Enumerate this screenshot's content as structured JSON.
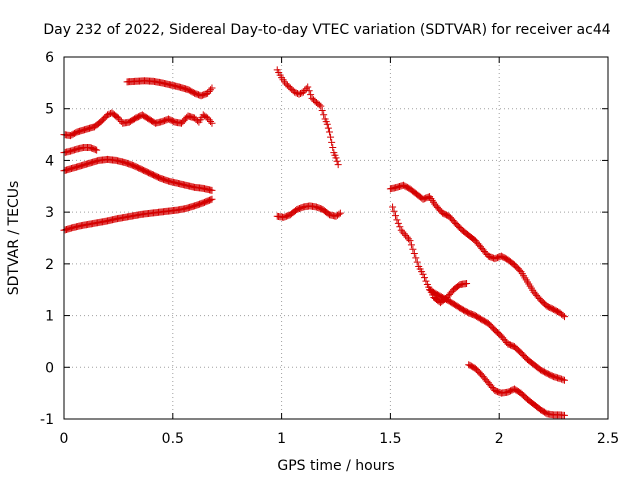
{
  "chart_data": {
    "type": "scatter",
    "title": "Day 232 of 2022, Sidereal Day-to-day VTEC variation (SDTVAR) for receiver ac44",
    "xlabel": "GPS time / hours",
    "ylabel": "SDTVAR / TECUs",
    "xlim": [
      0,
      2.5
    ],
    "ylim": [
      -1,
      6
    ],
    "xticks": [
      0,
      0.5,
      1,
      1.5,
      2,
      2.5
    ],
    "xtick_labels": [
      "0",
      "0.5",
      "1",
      "1.5",
      "2",
      "2.5"
    ],
    "yticks": [
      -1,
      0,
      1,
      2,
      3,
      4,
      5,
      6
    ],
    "ytick_labels": [
      "-1",
      "0",
      "1",
      "2",
      "3",
      "4",
      "5",
      "6"
    ],
    "grid": true,
    "marker": "+",
    "marker_color": "#d40000",
    "series": [
      {
        "name": "s1",
        "x": [
          0.29,
          0.33,
          0.37,
          0.41,
          0.45,
          0.49,
          0.53,
          0.57,
          0.6,
          0.63,
          0.66,
          0.68
        ],
        "y": [
          5.52,
          5.53,
          5.54,
          5.53,
          5.5,
          5.46,
          5.42,
          5.37,
          5.3,
          5.25,
          5.3,
          5.4
        ]
      },
      {
        "name": "s2",
        "x": [
          0.0,
          0.03,
          0.06,
          0.1,
          0.14,
          0.17,
          0.2,
          0.22,
          0.25,
          0.27,
          0.3,
          0.33,
          0.36,
          0.39,
          0.42,
          0.45,
          0.48,
          0.51,
          0.54,
          0.57,
          0.6,
          0.62,
          0.64,
          0.66,
          0.68
        ],
        "y": [
          4.5,
          4.48,
          4.55,
          4.6,
          4.65,
          4.75,
          4.88,
          4.92,
          4.82,
          4.72,
          4.74,
          4.82,
          4.88,
          4.8,
          4.72,
          4.75,
          4.8,
          4.74,
          4.72,
          4.86,
          4.82,
          4.74,
          4.88,
          4.82,
          4.72
        ]
      },
      {
        "name": "s3",
        "x": [
          0.0,
          0.03,
          0.06,
          0.09,
          0.12,
          0.15
        ],
        "y": [
          4.15,
          4.18,
          4.22,
          4.25,
          4.25,
          4.2
        ]
      },
      {
        "name": "s4",
        "x": [
          0.0,
          0.04,
          0.08,
          0.12,
          0.16,
          0.2,
          0.24,
          0.28,
          0.32,
          0.36,
          0.4,
          0.44,
          0.48,
          0.52,
          0.56,
          0.6,
          0.64,
          0.68
        ],
        "y": [
          3.8,
          3.85,
          3.9,
          3.95,
          4.0,
          4.02,
          4.0,
          3.96,
          3.9,
          3.82,
          3.74,
          3.66,
          3.6,
          3.56,
          3.52,
          3.48,
          3.46,
          3.42
        ]
      },
      {
        "name": "s5",
        "x": [
          0.0,
          0.04,
          0.08,
          0.12,
          0.16,
          0.2,
          0.24,
          0.28,
          0.32,
          0.36,
          0.4,
          0.44,
          0.48,
          0.52,
          0.56,
          0.6,
          0.64,
          0.68
        ],
        "y": [
          2.65,
          2.7,
          2.74,
          2.77,
          2.8,
          2.83,
          2.87,
          2.9,
          2.93,
          2.96,
          2.98,
          3.0,
          3.02,
          3.04,
          3.07,
          3.12,
          3.18,
          3.25
        ]
      },
      {
        "name": "s6",
        "x": [
          0.98,
          1.0,
          1.02,
          1.04,
          1.06,
          1.08,
          1.1,
          1.12,
          1.14,
          1.16,
          1.18,
          1.2,
          1.21,
          1.22,
          1.23,
          1.24,
          1.25,
          1.26
        ],
        "y": [
          5.75,
          5.6,
          5.48,
          5.4,
          5.32,
          5.28,
          5.32,
          5.42,
          5.2,
          5.12,
          5.05,
          4.8,
          4.7,
          4.55,
          4.35,
          4.15,
          4.05,
          3.92
        ]
      },
      {
        "name": "s7",
        "x": [
          0.98,
          1.01,
          1.04,
          1.07,
          1.1,
          1.13,
          1.16,
          1.19,
          1.22,
          1.25,
          1.27
        ],
        "y": [
          2.92,
          2.9,
          2.95,
          3.05,
          3.1,
          3.12,
          3.1,
          3.05,
          2.95,
          2.92,
          2.98
        ]
      },
      {
        "name": "s8",
        "x": [
          1.5,
          1.53,
          1.56,
          1.59,
          1.62,
          1.65,
          1.68,
          1.71,
          1.74,
          1.77,
          1.8,
          1.83,
          1.86,
          1.89,
          1.92,
          1.95,
          1.98,
          2.01,
          2.04,
          2.07,
          2.1,
          2.13,
          2.16,
          2.19,
          2.22,
          2.25,
          2.28,
          2.3
        ],
        "y": [
          3.45,
          3.48,
          3.52,
          3.45,
          3.35,
          3.25,
          3.3,
          3.12,
          2.98,
          2.92,
          2.78,
          2.65,
          2.55,
          2.45,
          2.3,
          2.15,
          2.1,
          2.15,
          2.08,
          1.98,
          1.85,
          1.65,
          1.45,
          1.3,
          1.18,
          1.12,
          1.05,
          0.98
        ]
      },
      {
        "name": "s9",
        "x": [
          1.51,
          1.53,
          1.55,
          1.57,
          1.59,
          1.61,
          1.63,
          1.65,
          1.67,
          1.7,
          1.73,
          1.76,
          1.79,
          1.82,
          1.85
        ],
        "y": [
          3.1,
          2.85,
          2.65,
          2.55,
          2.45,
          2.2,
          1.95,
          1.8,
          1.6,
          1.35,
          1.25,
          1.35,
          1.5,
          1.6,
          1.62
        ]
      },
      {
        "name": "s10",
        "x": [
          1.68,
          1.71,
          1.74,
          1.77,
          1.8,
          1.83,
          1.86,
          1.89,
          1.92,
          1.95,
          1.98,
          2.01,
          2.04,
          2.07,
          2.1,
          2.13,
          2.16,
          2.19,
          2.22,
          2.25,
          2.28,
          2.3
        ],
        "y": [
          1.5,
          1.42,
          1.35,
          1.28,
          1.2,
          1.12,
          1.05,
          1.0,
          0.92,
          0.85,
          0.72,
          0.6,
          0.45,
          0.4,
          0.28,
          0.15,
          0.05,
          -0.05,
          -0.12,
          -0.18,
          -0.22,
          -0.25
        ]
      },
      {
        "name": "s11",
        "x": [
          1.86,
          1.89,
          1.92,
          1.95,
          1.98,
          2.01,
          2.04,
          2.07,
          2.1,
          2.13,
          2.16,
          2.19,
          2.22,
          2.25,
          2.28,
          2.3
        ],
        "y": [
          0.05,
          -0.02,
          -0.15,
          -0.3,
          -0.45,
          -0.5,
          -0.48,
          -0.42,
          -0.5,
          -0.62,
          -0.72,
          -0.82,
          -0.9,
          -0.92,
          -0.92,
          -0.93
        ]
      }
    ]
  }
}
